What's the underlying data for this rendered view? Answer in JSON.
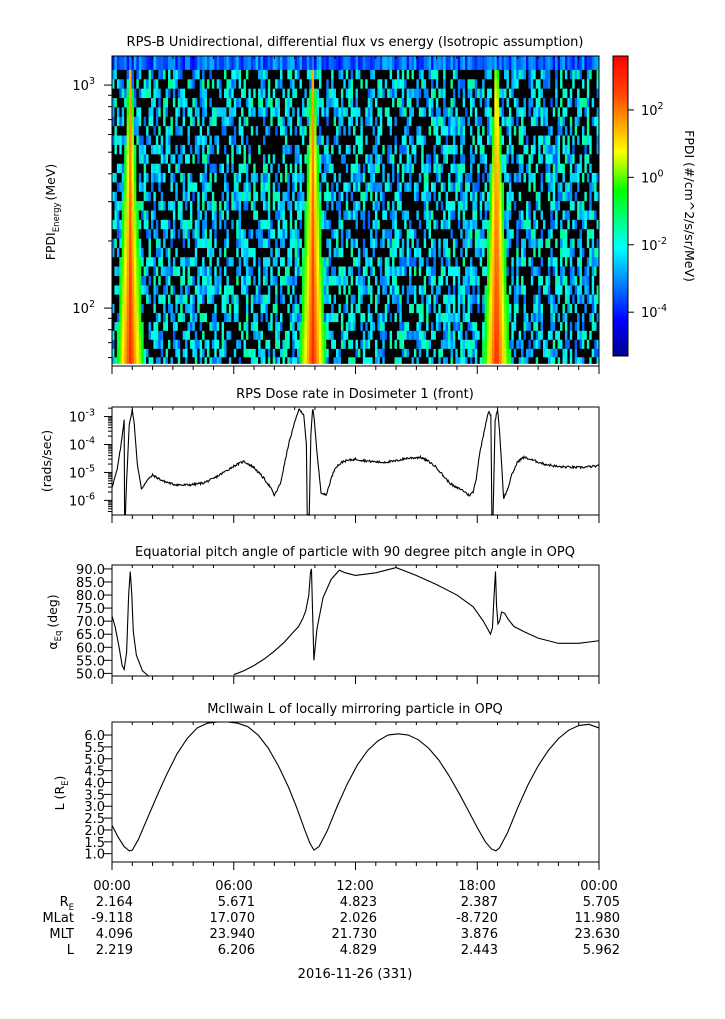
{
  "panels": {
    "p1": {
      "title": "RPS-B  Unidirectional, differential flux vs energy (Isotropic assumption)",
      "ylabel_main": "FPDI",
      "ylabel_sub": "Energy",
      "ylabel_unit": "(MeV)"
    },
    "p2": {
      "title": "RPS  Dose rate in Dosimeter 1 (front)",
      "ylabel": "(rads/sec)"
    },
    "p3": {
      "title": "Equatorial pitch angle of particle with 90 degree pitch angle in OPQ",
      "ylabel_main": "α",
      "ylabel_sub": "Eq",
      "ylabel_unit": "(deg)"
    },
    "p4": {
      "title": "McIlwain L of locally mirroring particle in OPQ",
      "ylabel_main": "L (R",
      "ylabel_sub": "E",
      "ylabel_unit": ")"
    }
  },
  "colorbar": {
    "label": "FPDI (#/cm^2/s/sr/MeV)",
    "ticks": [
      {
        "base": "10",
        "exp": "2",
        "v": 2
      },
      {
        "base": "10",
        "exp": "0",
        "v": 0
      },
      {
        "base": "10",
        "exp": "-2",
        "v": -2
      },
      {
        "base": "10",
        "exp": "-4",
        "v": -4
      }
    ],
    "range_log10": [
      -5.3,
      3.6
    ]
  },
  "xaxis": {
    "ticks": [
      "00:00",
      "06:00",
      "12:00",
      "18:00",
      "00:00"
    ]
  },
  "ephemeris": {
    "labels": [
      {
        "main": "R",
        "sub": "E"
      },
      {
        "main": "MLat",
        "sub": ""
      },
      {
        "main": "MLT",
        "sub": ""
      },
      {
        "main": "L",
        "sub": ""
      }
    ],
    "rows": [
      [
        "2.164",
        "5.671",
        "4.823",
        "2.387",
        "5.705"
      ],
      [
        "-9.118",
        "17.070",
        "2.026",
        "-8.720",
        "11.980"
      ],
      [
        "4.096",
        "23.940",
        "21.730",
        "3.876",
        "23.630"
      ],
      [
        "2.219",
        "6.206",
        "4.829",
        "2.443",
        "5.962"
      ]
    ]
  },
  "date_label": "2016-11-26 (331)",
  "chart_data": [
    {
      "type": "heatmap",
      "title": "RPS-B  Unidirectional, differential flux vs energy (Isotropic assumption)",
      "ylabel": "FPDI Energy (MeV)",
      "yscale": "log",
      "ylim": [
        55,
        1350
      ],
      "yticks": [
        {
          "base": "10",
          "exp": "2",
          "v": 100
        },
        {
          "base": "10",
          "exp": "3",
          "v": 1000
        }
      ],
      "x_range_hours": [
        0,
        24
      ],
      "colorbar_label": "FPDI (#/cm^2/s/sr/MeV)",
      "color_range_log10": [
        -5.3,
        3.6
      ],
      "perigee_hours": [
        0.9,
        9.9,
        18.95
      ],
      "energy_channels_mev": [
        58,
        63,
        69,
        76,
        83,
        91,
        100,
        110,
        121,
        133,
        147,
        162,
        178,
        196,
        216,
        238,
        262,
        289,
        318,
        350,
        386,
        425,
        468,
        516,
        568,
        626,
        690,
        760,
        837,
        922,
        1016,
        1119,
        1233
      ],
      "background_log10_flux": -3.5,
      "peak_log10_flux": 3.0,
      "note": ""
    },
    {
      "type": "line",
      "title": "RPS  Dose rate in Dosimeter 1 (front)",
      "ylabel": "(rads/sec)",
      "yscale": "log",
      "ylim": [
        3e-07,
        0.0022
      ],
      "yticks": [
        {
          "base": "10",
          "exp": "-3",
          "v": 0.001
        },
        {
          "base": "10",
          "exp": "-4",
          "v": 0.0001
        },
        {
          "base": "10",
          "exp": "-5",
          "v": 1e-05
        },
        {
          "base": "10",
          "exp": "-6",
          "v": 1e-06
        }
      ],
      "x_hours": [
        0.0,
        0.25,
        0.45,
        0.6,
        0.62,
        0.66,
        0.72,
        0.85,
        1.0,
        1.1,
        1.25,
        1.45,
        1.7,
        2.0,
        2.5,
        3.0,
        3.5,
        4.0,
        4.5,
        5.0,
        5.5,
        6.0,
        6.5,
        7.0,
        7.5,
        7.8,
        8.0,
        8.3,
        8.7,
        9.0,
        9.2,
        9.45,
        9.58,
        9.62,
        9.72,
        9.8,
        9.86,
        9.9,
        9.97,
        10.1,
        10.3,
        10.55,
        10.8,
        11.0,
        11.4,
        12.0,
        12.7,
        13.3,
        13.9,
        14.5,
        15.2,
        15.6,
        16.0,
        16.3,
        16.6,
        16.9,
        17.2,
        17.4,
        17.6,
        17.8,
        17.95,
        18.1,
        18.4,
        18.55,
        18.67,
        18.72,
        18.78,
        18.88,
        19.0,
        19.1,
        19.2,
        19.3,
        19.5,
        19.7,
        20.0,
        20.3,
        20.7,
        21.3,
        22.0,
        23.0,
        24.0
      ],
      "y": [
        3e-06,
        1.2e-05,
        0.0001,
        0.0008,
        3e-07,
        3e-07,
        5e-06,
        0.0005,
        0.0018,
        0.0005,
        2e-05,
        2.5e-06,
        5e-06,
        8e-06,
        5e-06,
        3.8e-06,
        3.5e-06,
        3.7e-06,
        4.2e-06,
        6e-06,
        1e-05,
        1.7e-05,
        2.5e-05,
        1.5e-05,
        6e-06,
        3e-06,
        1.5e-06,
        4e-06,
        0.0001,
        0.0006,
        0.0018,
        0.0012,
        0.0001,
        3e-07,
        3e-07,
        0.0002,
        0.0011,
        0.0019,
        0.0008,
        5e-05,
        2e-06,
        1.5e-06,
        6e-06,
        1.5e-05,
        2.5e-05,
        3e-05,
        2.5e-05,
        2.3e-05,
        2.5e-05,
        3.2e-05,
        3.5e-05,
        2.5e-05,
        1.5e-05,
        8e-06,
        4.5e-06,
        3e-06,
        2.5e-06,
        2e-06,
        1.5e-06,
        2e-06,
        6e-06,
        4e-05,
        0.0005,
        0.0015,
        0.0011,
        3e-07,
        3e-07,
        0.0007,
        0.0019,
        0.0003,
        2e-05,
        1.2e-06,
        2.5e-06,
        8e-06,
        2.5e-05,
        3.5e-05,
        2.8e-05,
        2e-05,
        1.6e-05,
        1.5e-05,
        1.7e-05
      ]
    },
    {
      "type": "line",
      "title": "Equatorial pitch angle of particle with 90 degree pitch angle in OPQ",
      "ylabel": "αEq (deg)",
      "ylim": [
        49,
        91.5
      ],
      "yticks": [
        50,
        55,
        60,
        65,
        70,
        75,
        80,
        85,
        90
      ],
      "segments": [
        {
          "x_hours": [
            0.0,
            0.15,
            0.35,
            0.5,
            0.6,
            0.72,
            0.82,
            0.9,
            0.97,
            1.05,
            1.2,
            1.5,
            1.8
          ],
          "y": [
            72,
            68,
            60,
            53,
            51.5,
            58,
            80,
            89,
            81,
            66,
            57,
            51,
            49
          ]
        },
        {
          "x_hours": [
            6.0,
            6.5,
            7.0,
            7.5,
            8.0,
            8.5,
            8.9,
            9.2,
            9.4,
            9.55,
            9.7,
            9.78,
            9.83,
            9.88,
            9.95,
            10.1,
            10.4,
            10.8,
            11.2,
            11.5,
            12.0,
            13.0,
            14.0,
            14.5,
            15.0,
            16.0,
            17.0,
            17.8,
            18.3,
            18.55,
            18.65,
            18.75,
            18.83,
            18.9,
            18.95,
            19.02,
            19.1,
            19.2,
            19.35,
            19.5,
            19.8,
            20.3,
            21.0,
            22.0,
            23.0,
            24.0
          ],
          "y": [
            49.5,
            51,
            53,
            55.5,
            58.5,
            62,
            65.5,
            68,
            71,
            74,
            80,
            88.5,
            90,
            75,
            55,
            67,
            79,
            86,
            89.5,
            88.5,
            87.5,
            88.5,
            90.5,
            89,
            87.5,
            84,
            80,
            75.5,
            70,
            66.5,
            65,
            67.5,
            80,
            89,
            76,
            69,
            70,
            73.5,
            73,
            71,
            68,
            66,
            63.5,
            61.5,
            61.5,
            62.5
          ]
        }
      ]
    },
    {
      "type": "line",
      "title": "McIlwain L of locally mirroring particle in OPQ",
      "ylabel": "L (RE)",
      "ylim": [
        0.65,
        6.55
      ],
      "yticks": [
        1,
        1.5,
        2,
        2.5,
        3,
        3.5,
        4,
        4.5,
        5,
        5.5,
        6
      ],
      "x_hours": [
        0.0,
        0.3,
        0.6,
        0.85,
        1.0,
        1.3,
        1.7,
        2.2,
        2.7,
        3.2,
        3.7,
        4.2,
        4.7,
        5.2,
        5.7,
        6.2,
        6.7,
        7.2,
        7.7,
        8.2,
        8.7,
        9.1,
        9.5,
        9.75,
        9.95,
        10.2,
        10.6,
        11.1,
        11.6,
        12.1,
        12.6,
        13.1,
        13.6,
        14.1,
        14.6,
        15.1,
        15.6,
        16.1,
        16.6,
        17.1,
        17.6,
        18.0,
        18.4,
        18.7,
        18.92,
        19.1,
        19.5,
        20.0,
        20.5,
        21.0,
        21.5,
        22.0,
        22.5,
        23.0,
        23.5,
        24.0
      ],
      "y": [
        2.2,
        1.7,
        1.3,
        1.12,
        1.15,
        1.6,
        2.4,
        3.4,
        4.35,
        5.2,
        5.85,
        6.3,
        6.5,
        6.55,
        6.55,
        6.5,
        6.35,
        6.0,
        5.45,
        4.7,
        3.8,
        2.95,
        2.0,
        1.45,
        1.15,
        1.3,
        1.95,
        3.0,
        3.95,
        4.75,
        5.35,
        5.75,
        6.0,
        6.05,
        6.0,
        5.8,
        5.45,
        4.95,
        4.3,
        3.55,
        2.75,
        2.1,
        1.5,
        1.2,
        1.12,
        1.25,
        1.9,
        2.95,
        3.9,
        4.7,
        5.35,
        5.85,
        6.2,
        6.4,
        6.45,
        6.3
      ]
    }
  ]
}
